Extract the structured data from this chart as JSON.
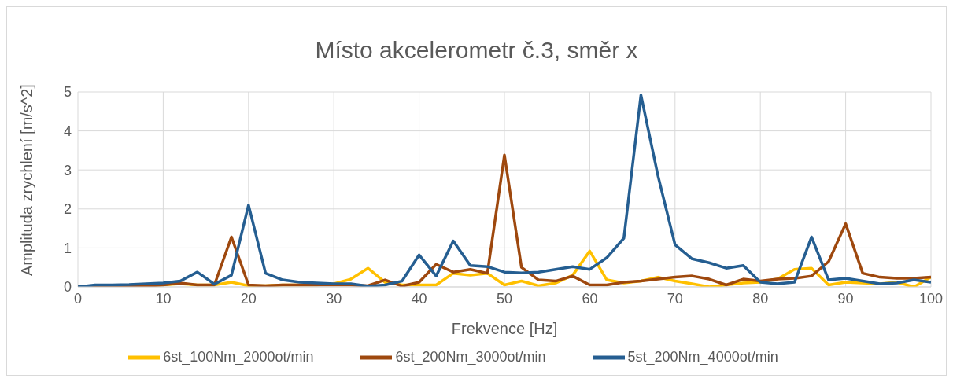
{
  "chart_data": {
    "type": "line",
    "title": "Místo akcelerometr č.3, směr x",
    "xlabel": "Frekvence [Hz]",
    "ylabel": "Amplituda zrychlení [m/s^2]",
    "x": [
      0,
      2,
      4,
      6,
      8,
      10,
      12,
      14,
      16,
      18,
      20,
      22,
      24,
      26,
      28,
      30,
      32,
      34,
      36,
      38,
      40,
      42,
      44,
      46,
      48,
      50,
      52,
      54,
      56,
      58,
      60,
      62,
      64,
      66,
      68,
      70,
      72,
      74,
      76,
      78,
      80,
      82,
      84,
      86,
      88,
      90,
      92,
      94,
      96,
      98,
      100
    ],
    "series": [
      {
        "name": "6st_100Nm_2000ot/min",
        "color": "#ffc000",
        "values": [
          null,
          null,
          null,
          null,
          0.03,
          0.05,
          0.08,
          0.05,
          0.05,
          0.12,
          0.03,
          0.03,
          0.05,
          0.05,
          0.05,
          0.08,
          0.2,
          0.48,
          0.12,
          0.05,
          0.05,
          0.05,
          0.35,
          0.3,
          0.35,
          0.05,
          0.15,
          0.03,
          0.1,
          0.3,
          0.92,
          0.18,
          0.1,
          0.15,
          0.25,
          0.15,
          0.08,
          0,
          0.05,
          0.1,
          0.12,
          0.2,
          0.45,
          0.48,
          0.05,
          0.12,
          0.1,
          0.08,
          0.12,
          0,
          0.25
        ]
      },
      {
        "name": "6st_200Nm_3000ot/min",
        "color": "#9e480e",
        "values": [
          0,
          0.02,
          0.02,
          0.02,
          0.02,
          0.05,
          0.1,
          0.05,
          0.05,
          1.28,
          0.05,
          0.03,
          0.05,
          0.05,
          0.05,
          0.05,
          0.05,
          0.03,
          0.18,
          0.02,
          0.12,
          0.58,
          0.38,
          0.45,
          0.35,
          3.38,
          0.5,
          0.18,
          0.15,
          0.28,
          0.05,
          0.05,
          0.12,
          0.15,
          0.2,
          0.25,
          0.28,
          0.2,
          0.05,
          0.2,
          0.15,
          0.2,
          0.22,
          0.28,
          0.65,
          1.62,
          0.35,
          0.25,
          0.22,
          0.22,
          0.25
        ]
      },
      {
        "name": "5st_200Nm_4000ot/min",
        "color": "#255e91",
        "values": [
          0,
          0.05,
          0.05,
          0.06,
          0.08,
          0.1,
          0.15,
          0.38,
          0.07,
          0.3,
          2.1,
          0.35,
          0.18,
          0.12,
          0.1,
          0.08,
          0.08,
          0.02,
          0.05,
          0.15,
          0.82,
          0.28,
          1.18,
          0.55,
          0.52,
          0.38,
          0.36,
          0.38,
          0.45,
          0.52,
          0.45,
          0.75,
          1.25,
          4.92,
          2.85,
          1.08,
          0.72,
          0.62,
          0.48,
          0.55,
          0.12,
          0.08,
          0.12,
          1.28,
          0.18,
          0.22,
          0.15,
          0.08,
          0.1,
          0.18,
          0.12
        ]
      }
    ],
    "xlim": [
      0,
      100
    ],
    "xticks": [
      0,
      10,
      20,
      30,
      40,
      50,
      60,
      70,
      80,
      90,
      100
    ],
    "ylim": [
      0,
      5
    ],
    "yticks": [
      0,
      1,
      2,
      3,
      4,
      5
    ],
    "grid": true,
    "legend": "bottom",
    "marker": "none",
    "line_style": "solid"
  }
}
